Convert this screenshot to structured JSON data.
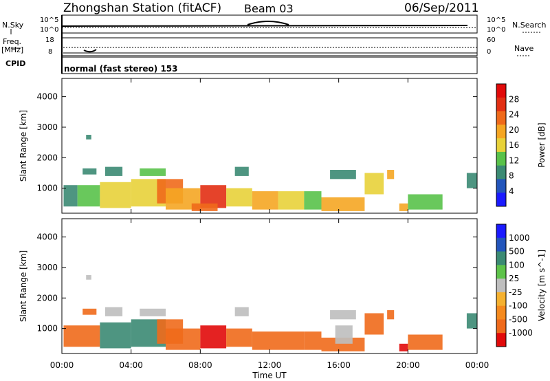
{
  "header": {
    "station": "Zhongshan Station (fitACF)",
    "beam": "Beam 03",
    "date": "06/Sep/2011"
  },
  "top_panels": {
    "nsky_label": "N.Sky",
    "nsky_left_ticks": [
      "10^5",
      "10^0"
    ],
    "nsky_right_ticks": [
      "10^5",
      "10^0"
    ],
    "nsearch_label": "N.Search",
    "freq_label_line1": "Freq.",
    "freq_label_line2": "[MHz]",
    "freq_ticks": [
      "18",
      "8"
    ],
    "nave_label": "Nave",
    "nave_ticks": [
      "60",
      "0"
    ],
    "cpid_label": "CPID",
    "cpid_text": "normal (fast stereo) 153"
  },
  "colors": {
    "power": [
      "#1a1aff",
      "#2255bb",
      "#3b8a73",
      "#59c24a",
      "#e8d23a",
      "#f5a623",
      "#ef6a1b",
      "#e22f13",
      "#e10a0a"
    ],
    "velocity": [
      "#e10a0a",
      "#ef6a1b",
      "#f58a1e",
      "#f5b130",
      "#bebebe",
      "#5ec34a",
      "#3b8a73",
      "#2255bb",
      "#1a1aff"
    ]
  },
  "chart_data": [
    {
      "type": "heatmap",
      "title": "Power [dB]",
      "xlabel": "Time UT",
      "ylabel": "Slant Range [km]",
      "x_ticks": [
        "00:00",
        "04:00",
        "08:00",
        "12:00",
        "16:00",
        "20:00",
        "00:00"
      ],
      "xlim_hours": [
        0,
        24
      ],
      "y_ticks": [
        1000,
        2000,
        3000,
        4000
      ],
      "ylim": [
        180,
        4600
      ],
      "colorbar_label": "Power [dB]",
      "colorbar_ticks": [
        "4",
        "8",
        "12",
        "16",
        "20",
        "24",
        "28"
      ],
      "colorbar_range": [
        0,
        30
      ],
      "regions": [
        {
          "t": [
            0.1,
            0.9
          ],
          "r": [
            400,
            1100
          ],
          "v": 8
        },
        {
          "t": [
            0.9,
            2.2
          ],
          "r": [
            400,
            1100
          ],
          "v": 12
        },
        {
          "t": [
            1.2,
            2.0
          ],
          "r": [
            1450,
            1650
          ],
          "v": 6
        },
        {
          "t": [
            1.4,
            1.7
          ],
          "r": [
            2600,
            2750
          ],
          "v": 6
        },
        {
          "t": [
            2.2,
            4.0
          ],
          "r": [
            350,
            1200
          ],
          "v": 16
        },
        {
          "t": [
            2.5,
            3.5
          ],
          "r": [
            1400,
            1700
          ],
          "v": 8
        },
        {
          "t": [
            4.0,
            6.0
          ],
          "r": [
            400,
            1300
          ],
          "v": 16
        },
        {
          "t": [
            4.5,
            6.0
          ],
          "r": [
            1400,
            1650
          ],
          "v": 12
        },
        {
          "t": [
            5.5,
            7.0
          ],
          "r": [
            500,
            1300
          ],
          "v": 24
        },
        {
          "t": [
            6.0,
            8.0
          ],
          "r": [
            300,
            1000
          ],
          "v": 20
        },
        {
          "t": [
            8.0,
            9.5
          ],
          "r": [
            350,
            1100
          ],
          "v": 26
        },
        {
          "t": [
            7.5,
            9.0
          ],
          "r": [
            250,
            500
          ],
          "v": 22
        },
        {
          "t": [
            9.5,
            11.0
          ],
          "r": [
            400,
            1000
          ],
          "v": 16
        },
        {
          "t": [
            10.0,
            10.8
          ],
          "r": [
            1400,
            1700
          ],
          "v": 8
        },
        {
          "t": [
            11.0,
            12.5
          ],
          "r": [
            300,
            900
          ],
          "v": 20
        },
        {
          "t": [
            12.5,
            14.0
          ],
          "r": [
            300,
            900
          ],
          "v": 14
        },
        {
          "t": [
            14.0,
            15.0
          ],
          "r": [
            300,
            900
          ],
          "v": 12
        },
        {
          "t": [
            15.0,
            17.5
          ],
          "r": [
            250,
            700
          ],
          "v": 18
        },
        {
          "t": [
            15.5,
            17.0
          ],
          "r": [
            1300,
            1600
          ],
          "v": 6
        },
        {
          "t": [
            17.5,
            18.6
          ],
          "r": [
            800,
            1500
          ],
          "v": 14
        },
        {
          "t": [
            18.8,
            19.2
          ],
          "r": [
            1300,
            1600
          ],
          "v": 20
        },
        {
          "t": [
            19.5,
            20.0
          ],
          "r": [
            250,
            500
          ],
          "v": 20
        },
        {
          "t": [
            20.0,
            22.0
          ],
          "r": [
            300,
            800
          ],
          "v": 12
        },
        {
          "t": [
            23.4,
            24.0
          ],
          "r": [
            1000,
            1500
          ],
          "v": 8
        }
      ]
    },
    {
      "type": "heatmap",
      "title": "Velocity [m s^-1]",
      "xlabel": "Time UT",
      "ylabel": "Slant Range [km]",
      "x_ticks": [
        "00:00",
        "04:00",
        "08:00",
        "12:00",
        "16:00",
        "20:00",
        "00:00"
      ],
      "xlim_hours": [
        0,
        24
      ],
      "y_ticks": [
        1000,
        2000,
        3000,
        4000
      ],
      "ylim": [
        180,
        4600
      ],
      "colorbar_label": "Velocity [m s^-1]",
      "colorbar_ticks": [
        "1000",
        "500",
        "100",
        "25",
        "-25",
        "-100",
        "-500",
        "-1000"
      ],
      "regions": [
        {
          "t": [
            0.1,
            2.2
          ],
          "r": [
            400,
            1100
          ],
          "c": "orange"
        },
        {
          "t": [
            1.2,
            2.0
          ],
          "r": [
            1450,
            1650
          ],
          "c": "orange"
        },
        {
          "t": [
            1.4,
            1.7
          ],
          "r": [
            2600,
            2750
          ],
          "c": "gray"
        },
        {
          "t": [
            2.2,
            4.0
          ],
          "r": [
            350,
            1200
          ],
          "c": "teal"
        },
        {
          "t": [
            2.5,
            3.5
          ],
          "r": [
            1400,
            1700
          ],
          "c": "gray"
        },
        {
          "t": [
            4.0,
            6.0
          ],
          "r": [
            400,
            1300
          ],
          "c": "teal"
        },
        {
          "t": [
            4.5,
            6.0
          ],
          "r": [
            1400,
            1650
          ],
          "c": "gray"
        },
        {
          "t": [
            5.5,
            7.0
          ],
          "r": [
            500,
            1300
          ],
          "c": "orange"
        },
        {
          "t": [
            6.0,
            8.0
          ],
          "r": [
            300,
            1000
          ],
          "c": "orange"
        },
        {
          "t": [
            8.0,
            9.5
          ],
          "r": [
            350,
            1100
          ],
          "c": "red"
        },
        {
          "t": [
            9.5,
            11.0
          ],
          "r": [
            400,
            1000
          ],
          "c": "orange"
        },
        {
          "t": [
            10.0,
            10.8
          ],
          "r": [
            1400,
            1700
          ],
          "c": "gray"
        },
        {
          "t": [
            11.0,
            14.0
          ],
          "r": [
            300,
            900
          ],
          "c": "orange"
        },
        {
          "t": [
            14.0,
            15.0
          ],
          "r": [
            300,
            900
          ],
          "c": "orange"
        },
        {
          "t": [
            15.0,
            17.5
          ],
          "r": [
            250,
            700
          ],
          "c": "orange"
        },
        {
          "t": [
            15.5,
            17.0
          ],
          "r": [
            1300,
            1600
          ],
          "c": "gray"
        },
        {
          "t": [
            15.8,
            16.8
          ],
          "r": [
            500,
            1100
          ],
          "c": "gray"
        },
        {
          "t": [
            17.5,
            18.6
          ],
          "r": [
            800,
            1500
          ],
          "c": "orange"
        },
        {
          "t": [
            18.8,
            19.2
          ],
          "r": [
            1300,
            1600
          ],
          "c": "orange"
        },
        {
          "t": [
            19.5,
            20.0
          ],
          "r": [
            250,
            500
          ],
          "c": "red"
        },
        {
          "t": [
            20.0,
            22.0
          ],
          "r": [
            300,
            800
          ],
          "c": "orange"
        },
        {
          "t": [
            23.4,
            24.0
          ],
          "r": [
            1000,
            1500
          ],
          "c": "teal"
        }
      ]
    }
  ]
}
